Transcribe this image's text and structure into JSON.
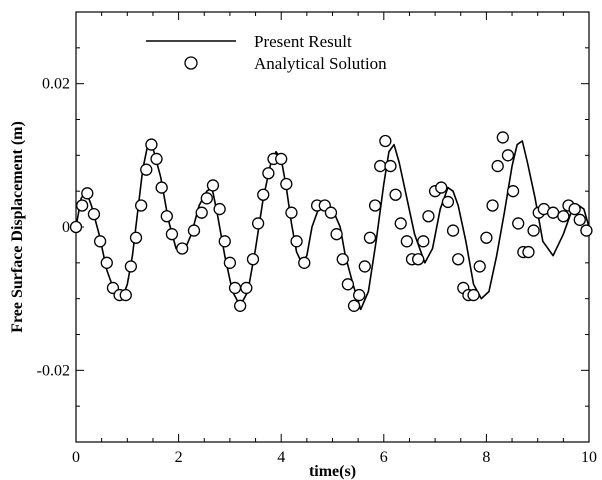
{
  "chart_data": {
    "type": "line",
    "title": "",
    "xlabel": "time(s)",
    "ylabel": "Free Surface Displacement (m)",
    "xlim": [
      0,
      10
    ],
    "ylim": [
      -0.03,
      0.03
    ],
    "x_ticks": [
      0,
      2,
      4,
      6,
      8,
      10
    ],
    "x_tick_labels": [
      "0",
      "2",
      "4",
      "6",
      "8",
      "10"
    ],
    "y_ticks": [
      -0.02,
      0,
      0.02
    ],
    "y_tick_labels": [
      "-0.02",
      "0",
      "0.02"
    ],
    "grid": false,
    "legend_position": "top-left",
    "series": [
      {
        "name": "Present Result",
        "style": "line",
        "color": "#000000",
        "x": [
          0,
          0.05,
          0.1,
          0.2,
          0.3,
          0.45,
          0.6,
          0.75,
          0.9,
          1.0,
          1.1,
          1.2,
          1.3,
          1.4,
          1.5,
          1.65,
          1.8,
          1.95,
          2.1,
          2.25,
          2.4,
          2.55,
          2.65,
          2.75,
          2.9,
          3.05,
          3.2,
          3.35,
          3.5,
          3.65,
          3.8,
          3.9,
          4.0,
          4.1,
          4.2,
          4.3,
          4.4,
          4.5,
          4.6,
          4.75,
          4.9,
          5.0,
          5.15,
          5.25,
          5.4,
          5.55,
          5.7,
          5.85,
          6.0,
          6.1,
          6.2,
          6.3,
          6.45,
          6.6,
          6.8,
          6.95,
          7.1,
          7.25,
          7.35,
          7.45,
          7.6,
          7.75,
          7.9,
          8.05,
          8.2,
          8.35,
          8.5,
          8.6,
          8.7,
          8.8,
          8.95,
          9.1,
          9.3,
          9.5,
          9.65,
          9.8,
          9.9,
          10.0
        ],
        "values": [
          0.0,
          0.002,
          0.004,
          0.005,
          0.003,
          -0.001,
          -0.006,
          -0.009,
          -0.01,
          -0.008,
          -0.004,
          0.002,
          0.008,
          0.0115,
          0.011,
          0.007,
          0.001,
          -0.003,
          -0.0035,
          -0.001,
          0.003,
          0.005,
          0.0055,
          0.002,
          -0.004,
          -0.009,
          -0.011,
          -0.009,
          -0.003,
          0.004,
          0.009,
          0.0105,
          0.0095,
          0.0055,
          0.0005,
          -0.0035,
          -0.005,
          -0.004,
          0.0,
          0.003,
          0.003,
          0.0025,
          0.0,
          -0.004,
          -0.008,
          -0.0115,
          -0.009,
          -0.002,
          0.006,
          0.0105,
          0.0115,
          0.009,
          0.004,
          -0.001,
          -0.005,
          -0.003,
          0.0025,
          0.0055,
          0.005,
          0.003,
          -0.002,
          -0.008,
          -0.01,
          -0.009,
          -0.004,
          0.002,
          0.0085,
          0.0115,
          0.012,
          0.009,
          0.004,
          -0.002,
          -0.004,
          -0.001,
          0.002,
          0.003,
          0.0025,
          0.0
        ]
      },
      {
        "name": "Analytical Solution",
        "style": "markers",
        "marker": "circle",
        "color": "#000000",
        "x": [
          0.0,
          0.12,
          0.22,
          0.35,
          0.47,
          0.6,
          0.72,
          0.85,
          0.97,
          1.07,
          1.17,
          1.27,
          1.37,
          1.47,
          1.57,
          1.67,
          1.77,
          1.87,
          2.07,
          2.3,
          2.45,
          2.55,
          2.67,
          2.8,
          2.9,
          3.0,
          3.1,
          3.2,
          3.32,
          3.45,
          3.55,
          3.65,
          3.75,
          3.85,
          4.0,
          4.1,
          4.2,
          4.3,
          4.45,
          4.7,
          4.85,
          4.97,
          5.08,
          5.2,
          5.3,
          5.42,
          5.52,
          5.63,
          5.73,
          5.83,
          5.93,
          6.03,
          6.13,
          6.23,
          6.33,
          6.45,
          6.55,
          6.67,
          6.77,
          6.87,
          7.0,
          7.12,
          7.25,
          7.35,
          7.45,
          7.55,
          7.65,
          7.75,
          7.87,
          8.0,
          8.12,
          8.22,
          8.32,
          8.42,
          8.52,
          8.62,
          8.72,
          8.82,
          8.92,
          9.02,
          9.12,
          9.3,
          9.5,
          9.6,
          9.72,
          9.82,
          9.95
        ],
        "values": [
          0.0,
          0.003,
          0.0047,
          0.0018,
          -0.002,
          -0.005,
          -0.0085,
          -0.0095,
          -0.0095,
          -0.0055,
          -0.0015,
          0.003,
          0.008,
          0.0115,
          0.0095,
          0.0055,
          0.0015,
          -0.001,
          -0.003,
          -0.0005,
          0.002,
          0.004,
          0.0058,
          0.0025,
          -0.002,
          -0.005,
          -0.0085,
          -0.011,
          -0.0085,
          -0.0045,
          0.0005,
          0.0045,
          0.0075,
          0.0095,
          0.0095,
          0.006,
          0.002,
          -0.002,
          -0.005,
          0.003,
          0.003,
          0.002,
          -0.001,
          -0.0045,
          -0.008,
          -0.011,
          -0.0095,
          -0.0055,
          -0.0015,
          0.003,
          0.0085,
          0.012,
          0.0085,
          0.0045,
          0.0005,
          -0.002,
          -0.0045,
          -0.0045,
          -0.002,
          0.0015,
          0.005,
          0.0055,
          0.0035,
          -0.0005,
          -0.0045,
          -0.0085,
          -0.0095,
          -0.0095,
          -0.0055,
          -0.0015,
          0.003,
          0.0085,
          0.0125,
          0.01,
          0.005,
          0.0005,
          -0.0035,
          -0.0035,
          -0.0005,
          0.002,
          0.0025,
          0.002,
          0.0015,
          0.003,
          0.0025,
          0.001,
          -0.0005
        ]
      }
    ]
  }
}
